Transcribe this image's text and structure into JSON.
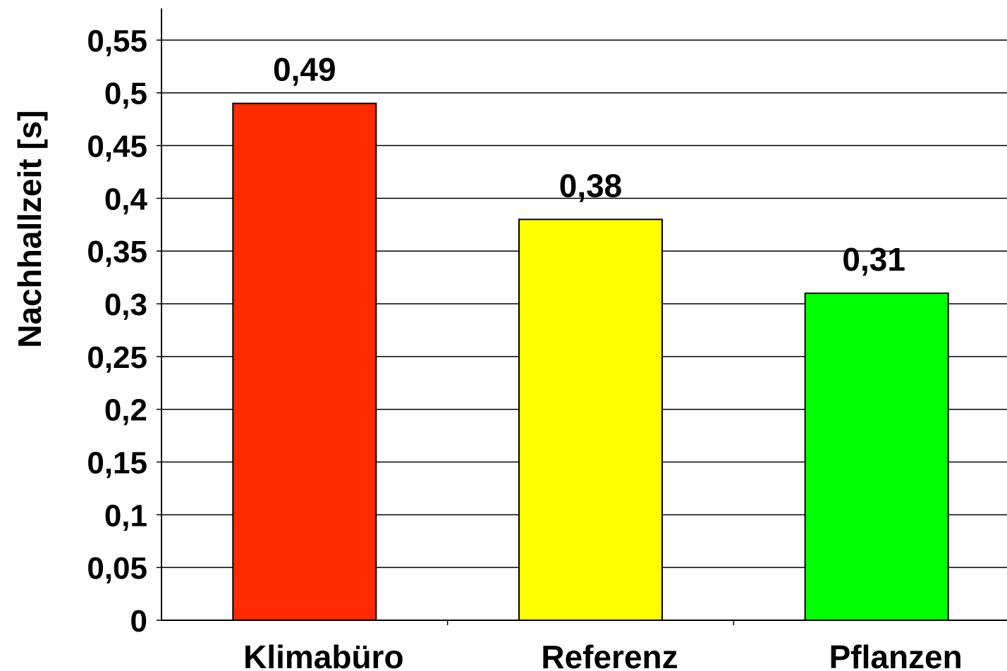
{
  "chart_data": {
    "type": "bar",
    "title": "",
    "xlabel": "",
    "ylabel": "Nachhallzeit [s]",
    "categories": [
      "Klimabüro",
      "Referenz",
      "Pflanzen"
    ],
    "values": [
      0.49,
      0.38,
      0.31
    ],
    "value_labels": [
      "0,49",
      "0,38",
      "0,31"
    ],
    "ylim": [
      0,
      0.58
    ],
    "yticks": [
      0,
      0.05,
      0.1,
      0.15,
      0.2,
      0.25,
      0.3,
      0.35,
      0.4,
      0.45,
      0.5,
      0.55
    ],
    "ytick_labels": [
      "0",
      "0,05",
      "0,1",
      "0,15",
      "0,2",
      "0,25",
      "0,3",
      "0,35",
      "0,4",
      "0,45",
      "0,5",
      "0,55"
    ],
    "grid": true,
    "legend": "none",
    "colors": [
      "#ff2a00",
      "#ffff00",
      "#00ff00"
    ]
  }
}
